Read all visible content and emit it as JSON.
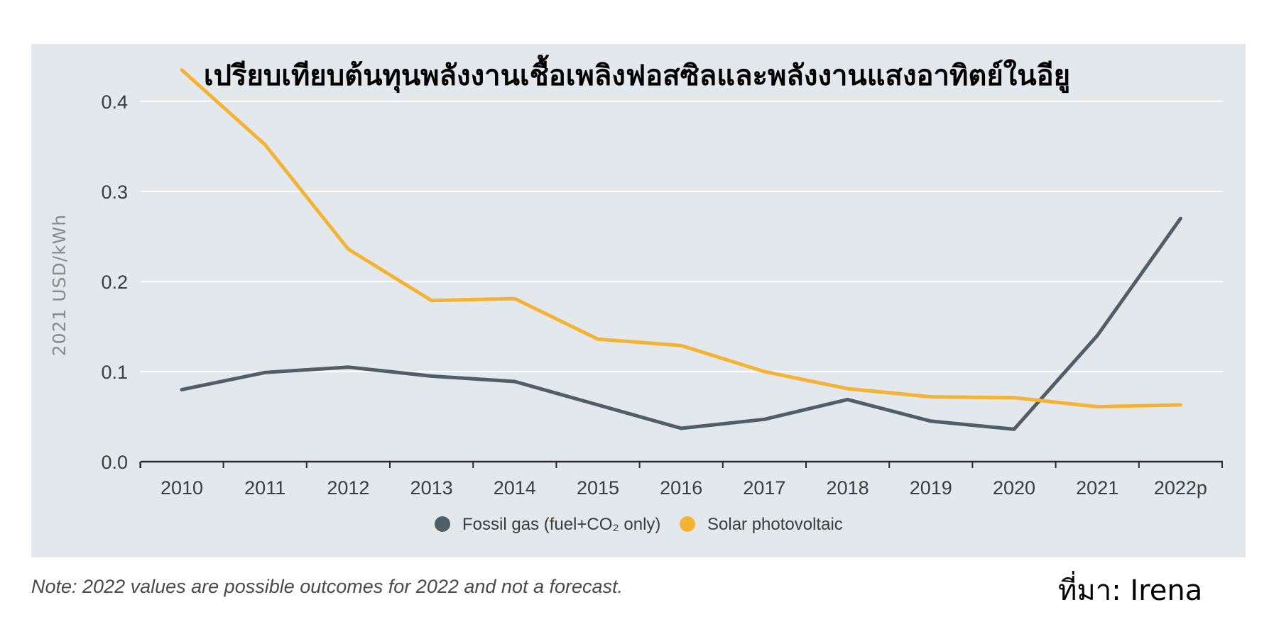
{
  "chart_data": {
    "type": "line",
    "title": "เปรียบเทียบต้นทุนพลังงานเชื้อเพลิงฟอสซิลและพลังงานแสงอาทิตย์ในอียู",
    "xlabel": "",
    "ylabel": "2021 USD/kWh",
    "categories": [
      "2010",
      "2011",
      "2012",
      "2013",
      "2014",
      "2015",
      "2016",
      "2017",
      "2018",
      "2019",
      "2020",
      "2021",
      "2022p"
    ],
    "yticks": [
      "0.0",
      "0.1",
      "0.2",
      "0.3",
      "0.4"
    ],
    "ylim": [
      0,
      0.4
    ],
    "grid": true,
    "legend_position": "bottom-center",
    "series": [
      {
        "name": "Fossil gas (fuel+CO₂ only)",
        "color": "#515e66",
        "values": [
          0.08,
          0.099,
          0.105,
          0.095,
          0.089,
          0.063,
          0.037,
          0.047,
          0.069,
          0.045,
          0.036,
          0.14,
          0.27
        ]
      },
      {
        "name": "Solar photovoltaic",
        "color": "#f5b335",
        "values": [
          0.435,
          0.352,
          0.236,
          0.179,
          0.181,
          0.136,
          0.129,
          0.1,
          0.081,
          0.072,
          0.071,
          0.061,
          0.063
        ]
      }
    ]
  },
  "note": "Note: 2022 values are possible outcomes for 2022 and not a forecast.",
  "source": "ที่มา: Irena"
}
